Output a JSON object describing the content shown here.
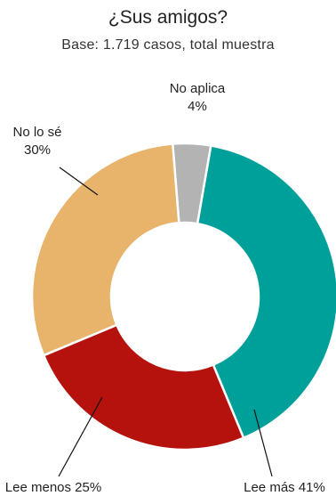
{
  "chart_data": {
    "type": "pie",
    "style": "donut",
    "title": "¿Sus amigos?",
    "subtitle": "Base: 1.719 casos, total muestra",
    "slices": [
      {
        "label": "No aplica",
        "value": 4,
        "value_label": "4%",
        "color": "#b3b3b3"
      },
      {
        "label": "Lee más",
        "value": 41,
        "value_label": "41%",
        "color": "#00a09a"
      },
      {
        "label": "Lee menos",
        "value": 25,
        "value_label": "25%",
        "color": "#b5120d"
      },
      {
        "label": "No lo sé",
        "value": 30,
        "value_label": "30%",
        "color": "#e8b46c"
      }
    ]
  }
}
